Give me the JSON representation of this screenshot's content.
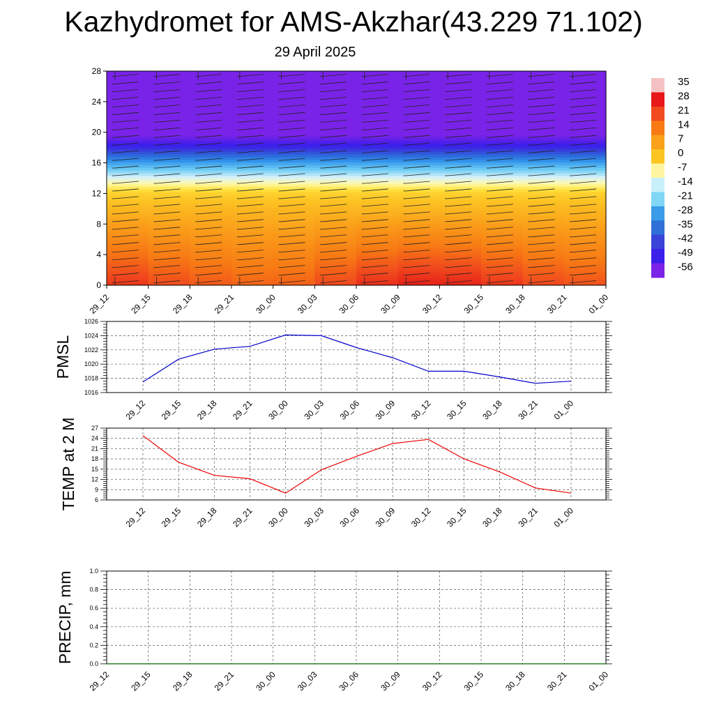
{
  "title": "Kazhydromet for AMS-Akzhar(43.229 71.102)",
  "subtitle": "29 April 2025",
  "colorbar": {
    "labels": [
      "35",
      "28",
      "21",
      "14",
      "7",
      "0",
      "-7",
      "-14",
      "-21",
      "-28",
      "-35",
      "-42",
      "-49",
      "-56"
    ],
    "colors": [
      "#f4c2c2",
      "#e81818",
      "#f04a1e",
      "#f77a14",
      "#f9a11a",
      "#fbc622",
      "#fff5a0",
      "#c8f0fa",
      "#7fd7f5",
      "#3a9ce8",
      "#2f6fd8",
      "#3a43d8",
      "#3c1fe8",
      "#7b23e8"
    ]
  },
  "chart_data": [
    {
      "type": "heatmap",
      "title": "Kazhydromet for AMS-Akzhar(43.229 71.102)",
      "subtitle": "29 April 2025",
      "x": [
        "29_12",
        "29_15",
        "29_18",
        "29_21",
        "30_00",
        "30_03",
        "30_06",
        "30_09",
        "30_12",
        "30_15",
        "30_18",
        "30_21",
        "01_00"
      ],
      "ylim": [
        0,
        28
      ],
      "yticks": [
        0,
        4,
        8,
        12,
        16,
        20,
        24,
        28
      ],
      "colorbar_range": [
        -56,
        35
      ],
      "levels": [
        0,
        2,
        4,
        6,
        8,
        10,
        12,
        14,
        16,
        18,
        20,
        22,
        24,
        26,
        28
      ],
      "temperature_by_level": [
        22,
        18,
        14,
        10,
        6,
        2,
        -2,
        -14,
        -28,
        -48,
        -58,
        -60,
        -60,
        -60,
        -60
      ],
      "surface_offset": [
        3,
        0,
        -3,
        -4,
        -6,
        -3,
        1,
        4,
        5,
        3,
        0,
        -2,
        -3
      ],
      "wind_barbs": true
    },
    {
      "type": "line",
      "ylabel": "PMSL",
      "x": [
        "29_12",
        "29_15",
        "29_18",
        "29_21",
        "30_00",
        "30_03",
        "30_06",
        "30_09",
        "30_12",
        "30_15",
        "30_18",
        "30_21",
        "01_00"
      ],
      "series": [
        {
          "color": "#0000cc",
          "values": [
            1017.5,
            1020.7,
            1022.1,
            1022.5,
            1024.1,
            1024.0,
            1022.3,
            1020.9,
            1019.0,
            1019.0,
            1018.2,
            1017.3,
            1017.6
          ]
        }
      ],
      "ylim": [
        1016,
        1026
      ],
      "yticks": [
        1016,
        1018,
        1020,
        1022,
        1024,
        1026
      ]
    },
    {
      "type": "line",
      "ylabel": "TEMP at 2 M",
      "x": [
        "29_12",
        "29_15",
        "29_18",
        "29_21",
        "30_00",
        "30_03",
        "30_06",
        "30_09",
        "30_12",
        "30_15",
        "30_18",
        "30_21",
        "01_00"
      ],
      "series": [
        {
          "color": "#ee0000",
          "values": [
            24.8,
            17.0,
            13.2,
            12.2,
            8.0,
            14.8,
            18.8,
            22.5,
            23.7,
            18.0,
            14.2,
            9.5,
            8.0
          ]
        }
      ],
      "ylim": [
        6,
        27
      ],
      "yticks": [
        6,
        9,
        12,
        15,
        18,
        21,
        24,
        27
      ]
    },
    {
      "type": "line",
      "ylabel": "PRECIP, mm",
      "x": [
        "29_12",
        "29_15",
        "29_18",
        "29_21",
        "30_00",
        "30_03",
        "30_06",
        "30_09",
        "30_12",
        "30_15",
        "30_18",
        "30_21",
        "01_00"
      ],
      "series": [
        {
          "color": "#006400",
          "values": [
            0,
            0,
            0,
            0,
            0,
            0,
            0,
            0,
            0,
            0,
            0,
            0,
            0
          ]
        }
      ],
      "ylim": [
        0.0,
        1.0
      ],
      "yticks": [
        0.0,
        0.2,
        0.4,
        0.6,
        0.8,
        1.0
      ],
      "ytick_labels": [
        "0.0",
        "0.2",
        "0.4",
        "0.6",
        "0.8",
        "1.0"
      ]
    }
  ]
}
